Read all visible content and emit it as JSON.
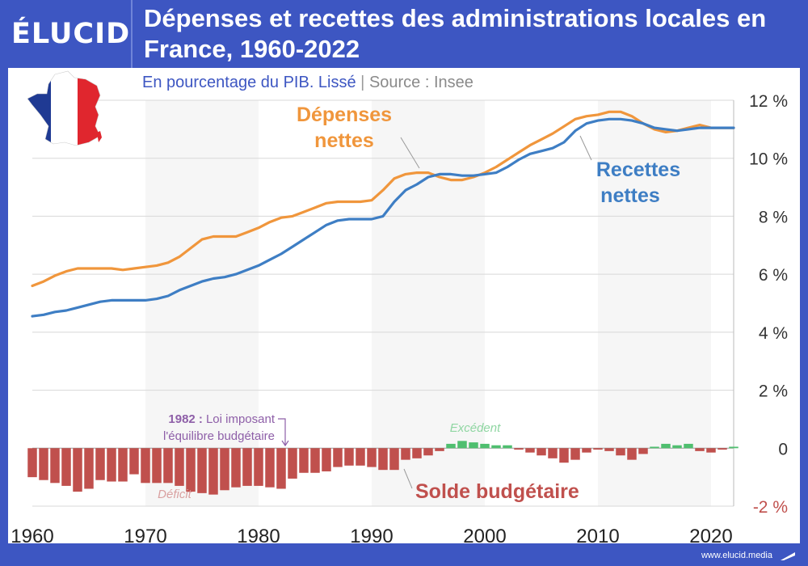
{
  "brand": {
    "logo": "ÉLUCID",
    "url": "www.elucid.media"
  },
  "colors": {
    "frame": "#3d56c2",
    "depenses": "#f0963c",
    "recettes": "#3e7ec4",
    "deficit": "#c0504d",
    "excedent": "#4fbf6f",
    "annotation": "#8e5fa8",
    "grid": "#d8d8d8",
    "band": "#f6f6f6"
  },
  "chart_data": {
    "type": "line",
    "title": "Dépenses et recettes des administrations locales en France, 1960-2022",
    "subtitle": "En pourcentage du PIB. Lissé",
    "source": "Source : Insee",
    "xlabel": "",
    "ylabel": "",
    "xlim": [
      1960,
      2022
    ],
    "ylim": [
      -2,
      12
    ],
    "x_ticks": [
      "1960",
      "1970",
      "1980",
      "1990",
      "2000",
      "2010",
      "2020"
    ],
    "y_ticks": [
      "12 %",
      "10 %",
      "8 %",
      "6 %",
      "4 %",
      "2 %",
      "0",
      "-2 %"
    ],
    "years": [
      1960,
      1961,
      1962,
      1963,
      1964,
      1965,
      1966,
      1967,
      1968,
      1969,
      1970,
      1971,
      1972,
      1973,
      1974,
      1975,
      1976,
      1977,
      1978,
      1979,
      1980,
      1981,
      1982,
      1983,
      1984,
      1985,
      1986,
      1987,
      1988,
      1989,
      1990,
      1991,
      1992,
      1993,
      1994,
      1995,
      1996,
      1997,
      1998,
      1999,
      2000,
      2001,
      2002,
      2003,
      2004,
      2005,
      2006,
      2007,
      2008,
      2009,
      2010,
      2011,
      2012,
      2013,
      2014,
      2015,
      2016,
      2017,
      2018,
      2019,
      2020,
      2021,
      2022
    ],
    "series": [
      {
        "name": "Dépenses nettes",
        "values": [
          5.6,
          5.75,
          5.95,
          6.1,
          6.2,
          6.2,
          6.2,
          6.2,
          6.15,
          6.2,
          6.25,
          6.3,
          6.4,
          6.6,
          6.9,
          7.2,
          7.3,
          7.3,
          7.3,
          7.45,
          7.6,
          7.8,
          7.95,
          8.0,
          8.15,
          8.3,
          8.45,
          8.5,
          8.5,
          8.5,
          8.55,
          8.9,
          9.3,
          9.45,
          9.5,
          9.5,
          9.35,
          9.25,
          9.25,
          9.35,
          9.5,
          9.7,
          9.95,
          10.2,
          10.45,
          10.65,
          10.85,
          11.1,
          11.35,
          11.45,
          11.5,
          11.6,
          11.6,
          11.45,
          11.2,
          11.0,
          10.9,
          10.95,
          11.05,
          11.15,
          11.05,
          11.05,
          11.05
        ]
      },
      {
        "name": "Recettes nettes",
        "values": [
          4.55,
          4.6,
          4.7,
          4.75,
          4.85,
          4.95,
          5.05,
          5.1,
          5.1,
          5.1,
          5.1,
          5.15,
          5.25,
          5.45,
          5.6,
          5.75,
          5.85,
          5.9,
          6.0,
          6.15,
          6.3,
          6.5,
          6.7,
          6.95,
          7.2,
          7.45,
          7.7,
          7.85,
          7.9,
          7.9,
          7.9,
          8.0,
          8.5,
          8.9,
          9.1,
          9.35,
          9.45,
          9.45,
          9.4,
          9.4,
          9.45,
          9.5,
          9.7,
          9.95,
          10.15,
          10.25,
          10.35,
          10.55,
          10.95,
          11.2,
          11.3,
          11.35,
          11.35,
          11.3,
          11.2,
          11.05,
          11.0,
          10.95,
          11.0,
          11.05,
          11.05,
          11.05,
          11.05
        ]
      },
      {
        "name": "Solde budgétaire",
        "values": [
          -1.0,
          -1.1,
          -1.2,
          -1.3,
          -1.5,
          -1.4,
          -1.1,
          -1.15,
          -1.15,
          -0.9,
          -1.2,
          -1.2,
          -1.2,
          -1.3,
          -1.5,
          -1.55,
          -1.6,
          -1.45,
          -1.35,
          -1.3,
          -1.3,
          -1.35,
          -1.4,
          -1.05,
          -0.85,
          -0.85,
          -0.8,
          -0.65,
          -0.6,
          -0.6,
          -0.65,
          -0.75,
          -0.75,
          -0.4,
          -0.35,
          -0.25,
          -0.1,
          0.15,
          0.25,
          0.2,
          0.15,
          0.1,
          0.1,
          -0.05,
          -0.15,
          -0.25,
          -0.35,
          -0.5,
          -0.4,
          -0.15,
          -0.05,
          -0.1,
          -0.25,
          -0.4,
          -0.2,
          0.05,
          0.15,
          0.1,
          0.15,
          -0.1,
          -0.15,
          -0.05,
          0.05
        ]
      }
    ],
    "labels": {
      "depenses": [
        "Dépenses",
        "nettes"
      ],
      "recettes": [
        "Recettes",
        "nettes"
      ],
      "solde": "Solde budgétaire",
      "deficit": "Déficit",
      "excedent": "Excédent",
      "annotation_year": "1982 :",
      "annotation_line1": "Loi imposant",
      "annotation_line2": "l'équilibre budgétaire"
    },
    "grid": true,
    "legend": "direct labels"
  }
}
